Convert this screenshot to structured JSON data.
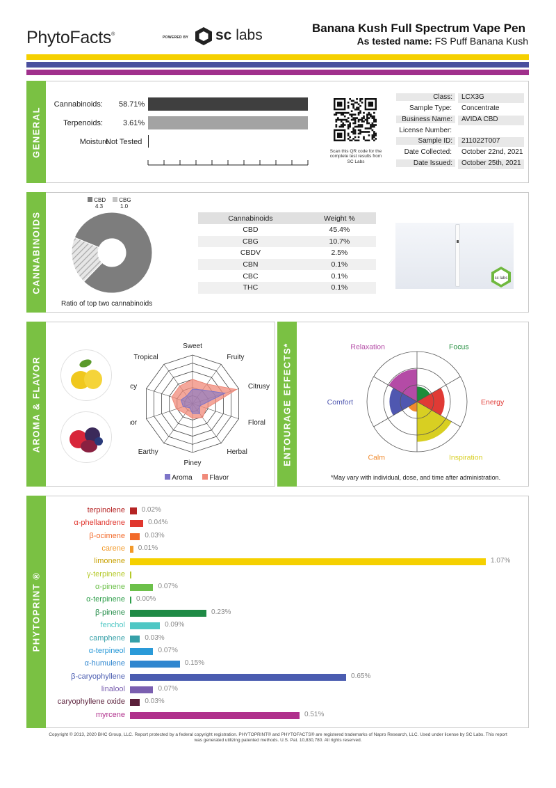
{
  "header": {
    "logo_text": "PhytoFacts",
    "logo_mark": "®",
    "powered_by": "POWERED BY",
    "sc_text_bold": "sc",
    "sc_text": " labs",
    "product_name": "Banana Kush Full Spectrum Vape Pen",
    "tested_label": "As tested name:",
    "tested_name": "FS Puff Banana Kush"
  },
  "stripes": [
    "#f5d000",
    "#4a4f9e",
    "#a0308c"
  ],
  "general": {
    "tab_label": "GENERAL",
    "rows": [
      {
        "label": "Cannabinoids:",
        "value": "58.71%",
        "fraction": 0.98,
        "color": "#3f3f3f"
      },
      {
        "label": "Terpenoids:",
        "value": "3.61%",
        "fraction": 0.98,
        "color": "#a3a3a3"
      }
    ],
    "moisture_label": "Moisture:",
    "moisture_value": "Not Tested",
    "qr_caption": "Scan this QR code for the complete test results from SC Labs",
    "info": [
      {
        "key": "Class:",
        "value": "LCX3G"
      },
      {
        "key": "Sample Type:",
        "value": "Concentrate"
      },
      {
        "key": "Business Name:",
        "value": "AVIDA CBD"
      },
      {
        "key": "License Number:",
        "value": ""
      },
      {
        "key": "Sample ID:",
        "value": "211022T007"
      },
      {
        "key": "Date Collected:",
        "value": "October 22nd, 2021"
      },
      {
        "key": "Date Issued:",
        "value": "October 25th, 2021"
      }
    ]
  },
  "cannabinoids": {
    "tab_label": "CANNABINOIDS",
    "legend": [
      {
        "name": "CBD",
        "value": "4.3",
        "color": "#7d7d7d"
      },
      {
        "name": "CBG",
        "value": "1.0",
        "color": "#c4c4c4"
      }
    ],
    "ratio_caption": "Ratio of top two cannabinoids",
    "table_header": [
      "Cannabinoids",
      "Weight %"
    ],
    "rows": [
      [
        "CBD",
        "45.4%"
      ],
      [
        "CBG",
        "10.7%"
      ],
      [
        "CBDV",
        "2.5%"
      ],
      [
        "CBN",
        "0.1%"
      ],
      [
        "CBC",
        "0.1%"
      ],
      [
        "THC",
        "0.1%"
      ]
    ],
    "product_badge": "sc labs"
  },
  "aroma": {
    "tab_label": "AROMA & FLAVOR",
    "axes": [
      "Sweet",
      "Fruity",
      "Citrusy",
      "Floral",
      "Herbal",
      "Piney",
      "Earthy",
      "Camphor",
      "Spicy",
      "Tropical"
    ],
    "aroma_values": [
      0.3,
      0.35,
      0.7,
      0.15,
      0.25,
      0.2,
      0.1,
      0.2,
      0.25,
      0.2
    ],
    "flavor_values": [
      0.5,
      0.5,
      0.95,
      0.3,
      0.35,
      0.3,
      0.25,
      0.35,
      0.45,
      0.45
    ],
    "legend_aroma": "Aroma",
    "legend_flavor": "Flavor",
    "aroma_color": "#7d74c8",
    "flavor_color": "#f08a7a"
  },
  "entourage": {
    "tab_label": "ENTOURAGE EFFECTS*",
    "effects": [
      {
        "name": "Focus",
        "value": 0.3,
        "color": "#1e8c3a"
      },
      {
        "name": "Energy",
        "value": 0.55,
        "color": "#e03a35"
      },
      {
        "name": "Inspiration",
        "value": 0.8,
        "color": "#d8cf22"
      },
      {
        "name": "Calm",
        "value": 0.2,
        "color": "#f08a2e"
      },
      {
        "name": "Comfort",
        "value": 0.55,
        "color": "#4f57b0"
      },
      {
        "name": "Relaxation",
        "value": 0.65,
        "color": "#b44ba6"
      }
    ],
    "footnote": "*May vary with individual, dose, and time after administration."
  },
  "phytoprint": {
    "tab_label": "PHYTOPRINT ®",
    "terpenes": [
      {
        "name": "terpinolene",
        "value": 0.02,
        "label": "0.02%",
        "color": "#b52424"
      },
      {
        "name": "α-phellandrene",
        "value": 0.04,
        "label": "0.04%",
        "color": "#e0362e"
      },
      {
        "name": "β-ocimene",
        "value": 0.03,
        "label": "0.03%",
        "color": "#f26a2a"
      },
      {
        "name": "carene",
        "value": 0.01,
        "label": "0.01%",
        "color": "#f29a2a"
      },
      {
        "name": "limonene",
        "value": 1.07,
        "label": "1.07%",
        "color": "#f5d000"
      },
      {
        "name": "γ-terpinene",
        "value": 0.0,
        "label": "",
        "color": "#b5c92a"
      },
      {
        "name": "α-pinene",
        "value": 0.07,
        "label": "0.07%",
        "color": "#6cc04a"
      },
      {
        "name": "α-terpinene",
        "value": 0.0,
        "label": "0.00%",
        "color": "#2e9e4a"
      },
      {
        "name": "β-pinene",
        "value": 0.23,
        "label": "0.23%",
        "color": "#1f8a45"
      },
      {
        "name": "fenchol",
        "value": 0.09,
        "label": "0.09%",
        "color": "#4ec7c4"
      },
      {
        "name": "camphene",
        "value": 0.03,
        "label": "0.03%",
        "color": "#36a0a8"
      },
      {
        "name": "α-terpineol",
        "value": 0.07,
        "label": "0.07%",
        "color": "#2a9ad8"
      },
      {
        "name": "α-humulene",
        "value": 0.15,
        "label": "0.15%",
        "color": "#2f86cf"
      },
      {
        "name": "β-caryophyllene",
        "value": 0.65,
        "label": "0.65%",
        "color": "#4a5cb0"
      },
      {
        "name": "linalool",
        "value": 0.07,
        "label": "0.07%",
        "color": "#7a5fb0"
      },
      {
        "name": "caryophyllene oxide",
        "value": 0.03,
        "label": "0.03%",
        "color": "#5a1f3a"
      },
      {
        "name": "myrcene",
        "value": 0.51,
        "label": "0.51%",
        "color": "#b0308c"
      }
    ]
  },
  "footer": {
    "line1": "Copyright © 2013, 2020 BHC Group, LLC. Report protected by a federal copyright registration. PHYTOPRINT® and PHYTOFACTS® are registered trademarks of Napro Research, LLC. Used under license by SC Labs. This report",
    "line2": "was generated utilizing patented methods. U.S. Pat. 10,830,780. All rights reserved."
  }
}
